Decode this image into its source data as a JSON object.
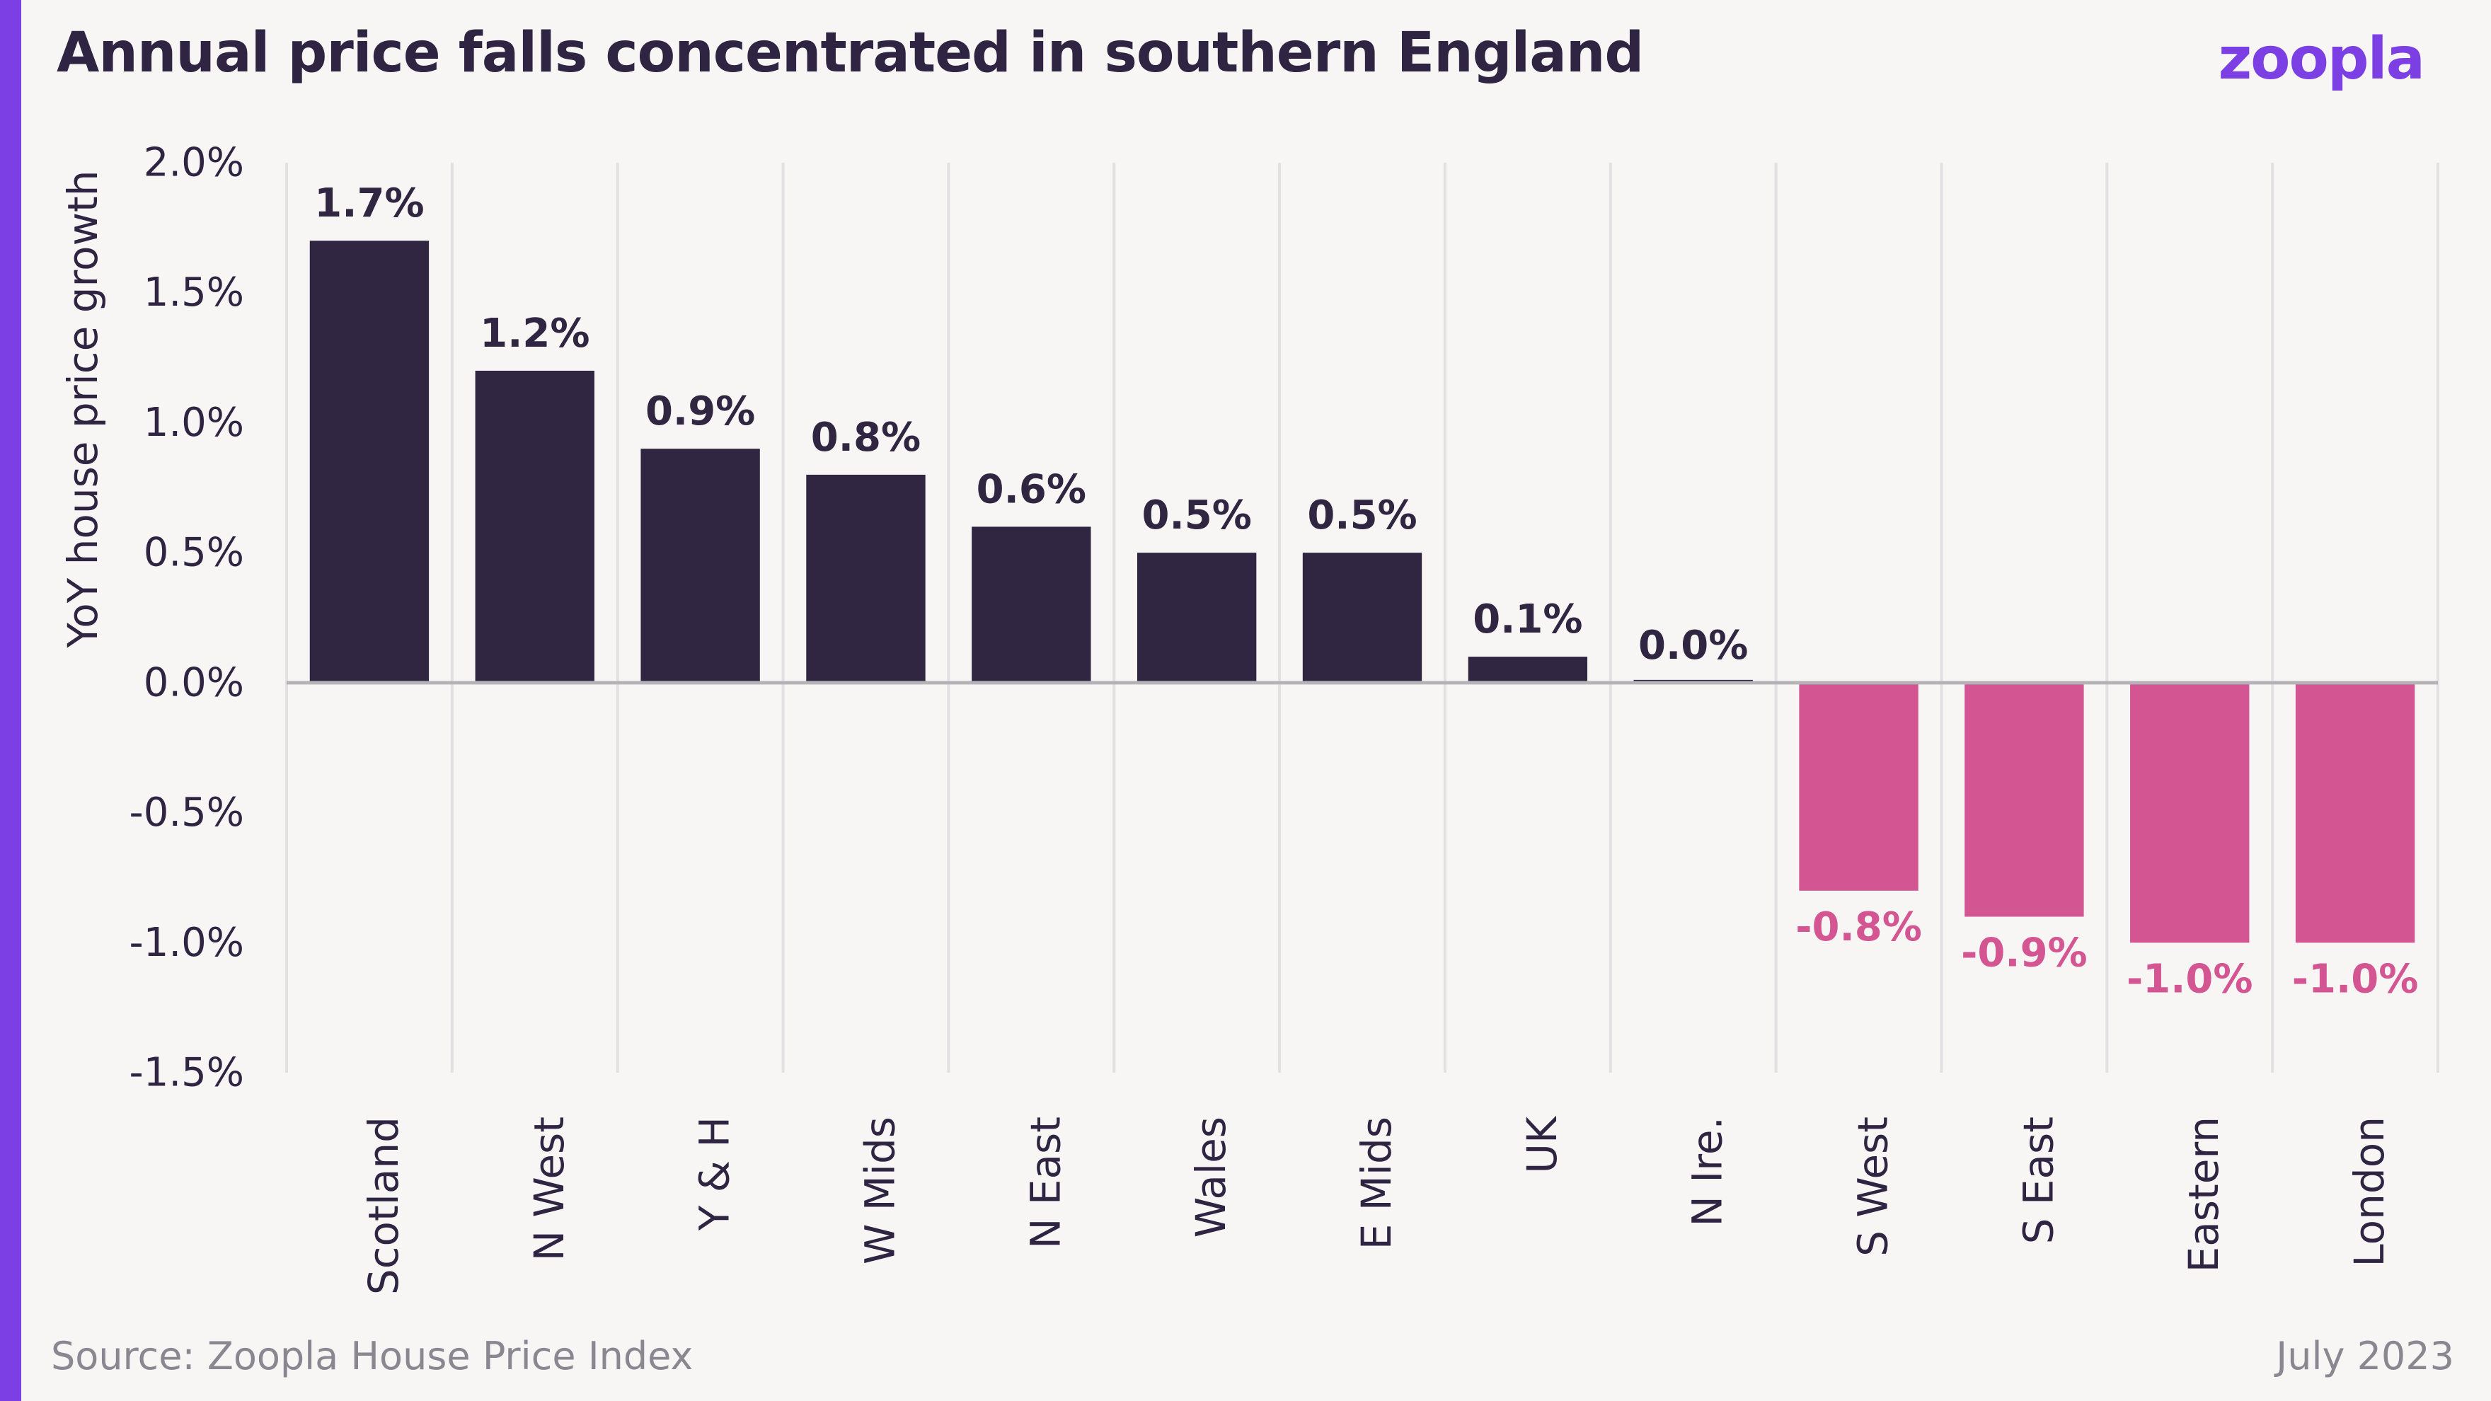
{
  "header": {
    "title": "Annual price falls concentrated in southern England",
    "logo_text": "zoopla"
  },
  "footer": {
    "source": "Source: Zoopla House Price Index",
    "date": "July 2023"
  },
  "colors": {
    "positive": "#312642",
    "negative": "#d35692",
    "accent": "#7b3fe4",
    "grid": "#e2e0e2",
    "zero_line": "#b5b3b7",
    "text": "#2f2542",
    "muted": "#8a8791"
  },
  "chart_data": {
    "type": "bar",
    "title": "Annual price falls concentrated in southern England",
    "xlabel": "",
    "ylabel": "YoY house price growth",
    "categories": [
      "Scotland",
      "N West",
      "Y & H",
      "W Mids",
      "N East",
      "Wales",
      "E Mids",
      "UK",
      "N Ire.",
      "S West",
      "S East",
      "Eastern",
      "London"
    ],
    "values": [
      1.7,
      1.2,
      0.9,
      0.8,
      0.6,
      0.5,
      0.5,
      0.1,
      0.0,
      -0.8,
      -0.9,
      -1.0,
      -1.0
    ],
    "data_labels": [
      "1.7%",
      "1.2%",
      "0.9%",
      "0.8%",
      "0.6%",
      "0.5%",
      "0.5%",
      "0.1%",
      "0.0%",
      "-0.8%",
      "-0.9%",
      "-1.0%",
      "-1.0%"
    ],
    "ylim": [
      -1.5,
      2.0
    ],
    "yticks": [
      2.0,
      1.5,
      1.0,
      0.5,
      0.0,
      -0.5,
      -1.0,
      -1.5
    ],
    "ytick_labels": [
      "2.0%",
      "1.5%",
      "1.0%",
      "0.5%",
      "0.0%",
      "-0.5%",
      "-1.0%",
      "-1.5%"
    ],
    "grid": "vertical",
    "legend": "none"
  }
}
